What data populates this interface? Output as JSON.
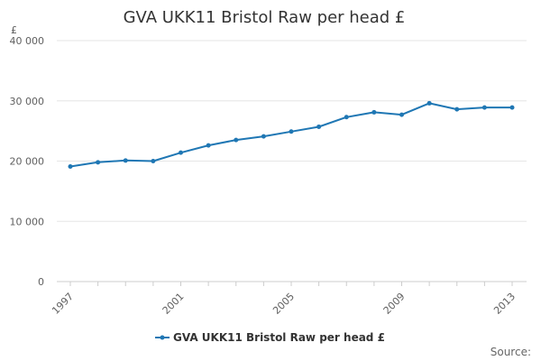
{
  "chart_data": {
    "type": "line",
    "title": "GVA UKK11 Bristol Raw per head £",
    "ylabel": "£",
    "xlabel": "",
    "x": [
      1997,
      1998,
      1999,
      2000,
      2001,
      2002,
      2003,
      2004,
      2005,
      2006,
      2007,
      2008,
      2009,
      2010,
      2011,
      2012,
      2013
    ],
    "x_tick_labels": [
      "1997",
      "2001",
      "2005",
      "2009",
      "2013"
    ],
    "y_tick_labels": [
      "0",
      "10 000",
      "20 000",
      "30 000",
      "40 000"
    ],
    "ylim": [
      0,
      40000
    ],
    "xlim": [
      1997,
      2013
    ],
    "grid": true,
    "legend_position": "bottom",
    "series": [
      {
        "name": "GVA UKK11 Bristol Raw per head £",
        "color": "#1f77b4",
        "values": [
          19100,
          19800,
          20100,
          20000,
          21400,
          22600,
          23500,
          24100,
          24900,
          25700,
          27300,
          28100,
          27700,
          29600,
          28600,
          28900,
          28900
        ]
      }
    ]
  },
  "footer": {
    "source_label": "Source:"
  }
}
